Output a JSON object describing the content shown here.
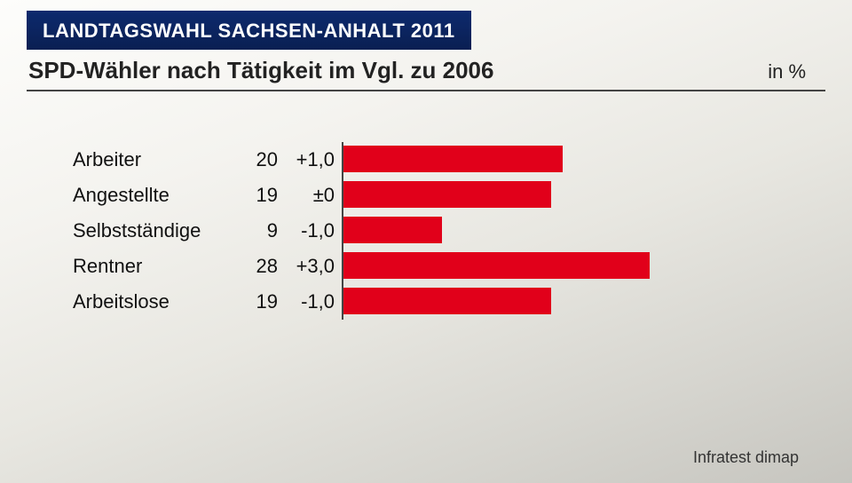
{
  "header": {
    "banner": "LANDTAGSWAHL SACHSEN-ANHALT 2011",
    "subtitle": "SPD-Wähler nach Tätigkeit im Vgl. zu 2006",
    "unit": "in %"
  },
  "chart": {
    "type": "bar",
    "bar_color": "#e1001a",
    "axis_color": "#444444",
    "text_color": "#111111",
    "label_fontsize": 22,
    "value_fontsize": 22,
    "max_value": 40,
    "rows": [
      {
        "label": "Arbeiter",
        "value": 20,
        "change": "+1,0"
      },
      {
        "label": "Angestellte",
        "value": 19,
        "change": "±0"
      },
      {
        "label": "Selbstständige",
        "value": 9,
        "change": "-1,0"
      },
      {
        "label": "Rentner",
        "value": 28,
        "change": "+3,0"
      },
      {
        "label": "Arbeitslose",
        "value": 19,
        "change": "-1,0"
      }
    ]
  },
  "footer": {
    "source": "Infratest dimap"
  }
}
